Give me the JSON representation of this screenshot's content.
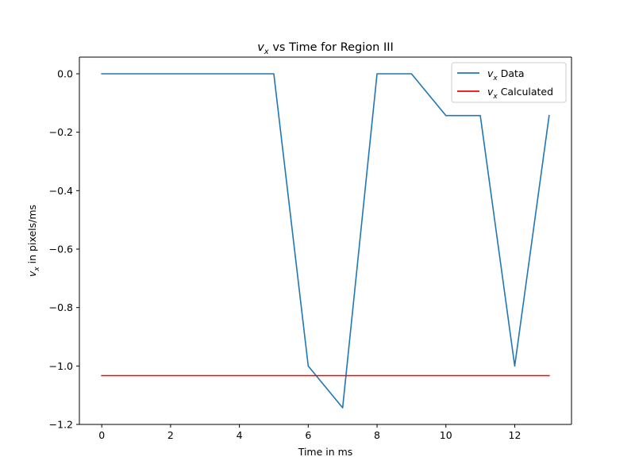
{
  "chart_data": {
    "type": "line",
    "title": {
      "var": "v",
      "sub": "x",
      "rest": " vs Time for Region III"
    },
    "xlabel": "Time in ms",
    "ylabel": {
      "var": "v",
      "sub": "x",
      "rest": " in pixels/ms"
    },
    "xlim": [
      -0.65,
      13.65
    ],
    "ylim": [
      -1.2,
      0.057
    ],
    "xticks": [
      0,
      2,
      4,
      6,
      8,
      10,
      12
    ],
    "xtick_labels": [
      "0",
      "2",
      "4",
      "6",
      "8",
      "10",
      "12"
    ],
    "yticks": [
      0.0,
      -0.2,
      -0.4,
      -0.6,
      -0.8,
      -1.0,
      -1.2
    ],
    "ytick_labels": [
      "0.0",
      "−0.2",
      "−0.4",
      "−0.6",
      "−0.8",
      "−1.0",
      "−1.2"
    ],
    "grid": false,
    "legend_position": "top-right",
    "series": [
      {
        "name": {
          "var": "v",
          "sub": "x",
          "rest": " Data"
        },
        "color": "#1f77b4",
        "x": [
          0,
          1,
          2,
          3,
          4,
          5,
          6,
          7,
          8,
          9,
          10,
          11,
          12,
          13
        ],
        "y": [
          0,
          0,
          0,
          0,
          0,
          0,
          -1.0,
          -1.143,
          0,
          0,
          -0.143,
          -0.143,
          -1.0,
          -0.143
        ]
      },
      {
        "name": {
          "var": "v",
          "sub": "x",
          "rest": " Calculated"
        },
        "color": "#ff0000",
        "x": [
          0,
          13
        ],
        "y": [
          -1.033,
          -1.033
        ]
      }
    ]
  }
}
